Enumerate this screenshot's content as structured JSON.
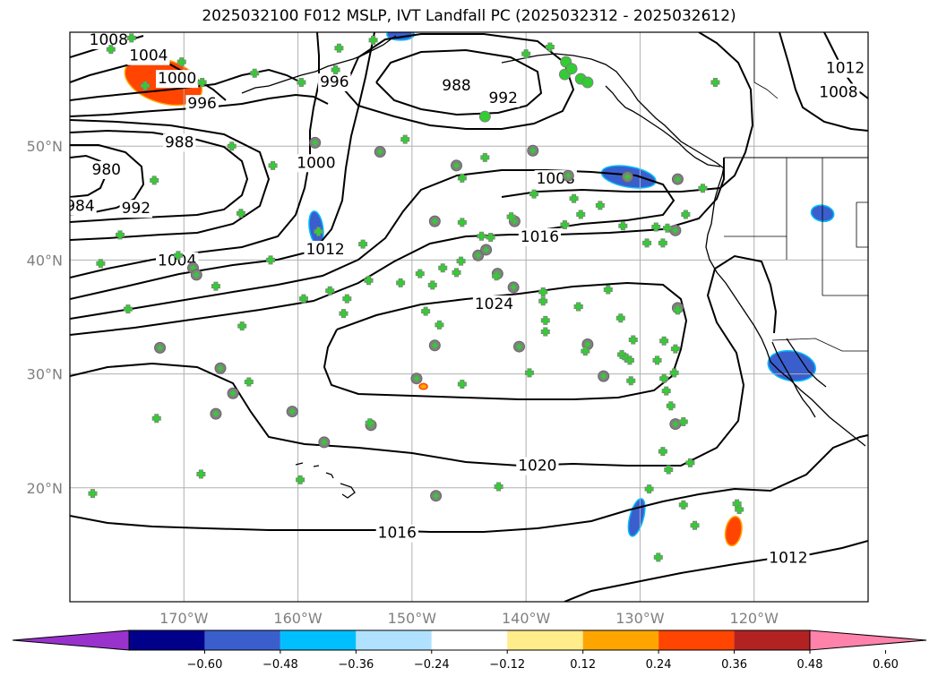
{
  "title": "2025032100 F012 MSLP, IVT Landfall PC (2025032312 - 2025032612)",
  "map": {
    "lon_range": [
      -180,
      -110
    ],
    "lat_range": [
      10,
      60
    ],
    "lat_ticks": [
      {
        "value": 50,
        "label": "50°N"
      },
      {
        "value": 40,
        "label": "40°N"
      },
      {
        "value": 30,
        "label": "30°N"
      },
      {
        "value": 20,
        "label": "20°N"
      }
    ],
    "lon_ticks": [
      {
        "value": -170,
        "label": "170°W"
      },
      {
        "value": -160,
        "label": "160°W"
      },
      {
        "value": -150,
        "label": "150°W"
      },
      {
        "value": -140,
        "label": "140°W"
      },
      {
        "value": -130,
        "label": "130°W"
      },
      {
        "value": -120,
        "label": "120°W"
      }
    ],
    "grid": true
  },
  "contour_labels": [
    {
      "text": "1008",
      "lon": -176.6,
      "lat": 59.3
    },
    {
      "text": "1004",
      "lon": -173.1,
      "lat": 57.9
    },
    {
      "text": "1000",
      "lon": -170.6,
      "lat": 55.9
    },
    {
      "text": "996",
      "lon": -168.4,
      "lat": 53.7
    },
    {
      "text": "988",
      "lon": -170.4,
      "lat": 50.3
    },
    {
      "text": "980",
      "lon": -176.8,
      "lat": 47.9
    },
    {
      "text": "984",
      "lon": -179.1,
      "lat": 44.7
    },
    {
      "text": "992",
      "lon": -174.2,
      "lat": 44.5
    },
    {
      "text": "1004",
      "lon": -170.6,
      "lat": 39.9
    },
    {
      "text": "996",
      "lon": -156.8,
      "lat": 55.6
    },
    {
      "text": "1000",
      "lon": -158.4,
      "lat": 48.5
    },
    {
      "text": "988",
      "lon": -146.1,
      "lat": 55.3
    },
    {
      "text": "992",
      "lon": -142.0,
      "lat": 54.2
    },
    {
      "text": "1012",
      "lon": -157.6,
      "lat": 40.9
    },
    {
      "text": "1008",
      "lon": -137.4,
      "lat": 47.1
    },
    {
      "text": "1016",
      "lon": -138.8,
      "lat": 42.0
    },
    {
      "text": "1024",
      "lon": -142.8,
      "lat": 36.1
    },
    {
      "text": "1020",
      "lon": -139.0,
      "lat": 21.9
    },
    {
      "text": "1016",
      "lon": -151.3,
      "lat": 16.0
    },
    {
      "text": "1012",
      "lon": -117.0,
      "lat": 13.8
    },
    {
      "text": "1012",
      "lon": -112.0,
      "lat": 56.8
    },
    {
      "text": "1008",
      "lon": -112.6,
      "lat": 54.7
    }
  ],
  "colorbar": {
    "colors": [
      "#9932cc",
      "#00008b",
      "#3a5fcd",
      "#00bfff",
      "#b0e2ff",
      "#ffffff",
      "#ffec8b",
      "#ffa500",
      "#ff4500",
      "#b22222",
      "#ff82ab"
    ],
    "ticks": [
      "−0.60",
      "−0.48",
      "−0.36",
      "−0.24",
      "−0.12",
      "0.12",
      "0.24",
      "0.36",
      "0.48",
      "0.60"
    ]
  },
  "ivt_patches": [
    {
      "lon": -171.8,
      "lat": 55.7,
      "rlon": 3.5,
      "rlat": 1.9,
      "rot": 18,
      "fill": "#ff4500",
      "stroke": "#ffa500"
    },
    {
      "lon": -131.0,
      "lat": 47.3,
      "rlon": 2.4,
      "rlat": 0.9,
      "rot": 10,
      "fill": "#3a5fcd",
      "stroke": "#00bfff"
    },
    {
      "lon": -158.4,
      "lat": 42.8,
      "rlon": 0.6,
      "rlat": 1.5,
      "rot": -8,
      "fill": "#3a5fcd",
      "stroke": "#00bfff"
    },
    {
      "lon": -116.7,
      "lat": 30.7,
      "rlon": 2.1,
      "rlat": 1.3,
      "rot": 10,
      "fill": "#3a5fcd",
      "stroke": "#00bfff"
    },
    {
      "lon": -114.0,
      "lat": 44.1,
      "rlon": 1.0,
      "rlat": 0.7,
      "rot": 10,
      "fill": "#3a5fcd",
      "stroke": "#00bfff"
    },
    {
      "lon": -130.3,
      "lat": 17.4,
      "rlon": 0.6,
      "rlat": 1.7,
      "rot": 15,
      "fill": "#3a5fcd",
      "stroke": "#00bfff"
    },
    {
      "lon": -121.8,
      "lat": 16.2,
      "rlon": 0.7,
      "rlat": 1.3,
      "rot": 10,
      "fill": "#ff4500",
      "stroke": "#ffa500"
    },
    {
      "lon": -151.0,
      "lat": 59.8,
      "rlon": 1.2,
      "rlat": 0.5,
      "rot": 0,
      "fill": "#3a5fcd",
      "stroke": "#00bfff"
    },
    {
      "lon": -149.0,
      "lat": 28.9,
      "rlon": 0.35,
      "rlat": 0.25,
      "rot": 0,
      "fill": "#ffa500",
      "stroke": "#ff4500"
    }
  ],
  "markers": {
    "plus": [
      [
        -176.4,
        58.5
      ],
      [
        -174.6,
        59.5
      ],
      [
        -173.4,
        55.3
      ],
      [
        -172.6,
        47.0
      ],
      [
        -170.2,
        57.4
      ],
      [
        -168.4,
        55.6
      ],
      [
        -165.8,
        50.0
      ],
      [
        -165.0,
        44.1
      ],
      [
        -163.8,
        56.4
      ],
      [
        -162.2,
        48.3
      ],
      [
        -159.7,
        55.6
      ],
      [
        -156.7,
        56.7
      ],
      [
        -156.4,
        58.6
      ],
      [
        -153.4,
        59.3
      ],
      [
        -150.6,
        50.6
      ],
      [
        -149.3,
        38.8
      ],
      [
        -148.8,
        35.5
      ],
      [
        -145.6,
        47.2
      ],
      [
        -143.6,
        49.0
      ],
      [
        -140.0,
        58.1
      ],
      [
        -137.9,
        58.7
      ],
      [
        -135.8,
        45.4
      ],
      [
        -133.5,
        44.8
      ],
      [
        -131.5,
        43.0
      ],
      [
        -129.4,
        41.5
      ],
      [
        -128.0,
        41.5
      ],
      [
        -127.6,
        42.8
      ],
      [
        -126.0,
        44.0
      ],
      [
        -124.5,
        46.3
      ],
      [
        -123.4,
        55.6
      ],
      [
        -175.6,
        42.2
      ],
      [
        -177.3,
        39.7
      ],
      [
        -174.9,
        35.7
      ],
      [
        -170.5,
        40.4
      ],
      [
        -167.2,
        37.7
      ],
      [
        -164.9,
        34.2
      ],
      [
        -162.4,
        40.0
      ],
      [
        -159.5,
        36.6
      ],
      [
        -158.2,
        42.5
      ],
      [
        -157.2,
        37.3
      ],
      [
        -156.0,
        35.3
      ],
      [
        -155.7,
        36.6
      ],
      [
        -154.3,
        41.4
      ],
      [
        -153.8,
        38.2
      ],
      [
        -151.0,
        38.0
      ],
      [
        -148.2,
        37.8
      ],
      [
        -147.3,
        39.3
      ],
      [
        -146.1,
        38.9
      ],
      [
        -145.7,
        39.9
      ],
      [
        -145.6,
        43.3
      ],
      [
        -143.9,
        42.1
      ],
      [
        -143.1,
        42.0
      ],
      [
        -142.6,
        38.6
      ],
      [
        -141.3,
        43.8
      ],
      [
        -139.3,
        45.8
      ],
      [
        -138.5,
        37.2
      ],
      [
        -136.6,
        43.1
      ],
      [
        -135.2,
        44.0
      ],
      [
        -132.8,
        37.4
      ],
      [
        -131.7,
        34.9
      ],
      [
        -130.6,
        33.0
      ],
      [
        -128.6,
        42.9
      ],
      [
        -126.7,
        35.6
      ],
      [
        -126.9,
        32.2
      ],
      [
        -127.9,
        32.9
      ],
      [
        -128.5,
        31.2
      ],
      [
        -127.0,
        30.1
      ],
      [
        -127.9,
        29.6
      ],
      [
        -126.2,
        25.8
      ],
      [
        -127.3,
        27.2
      ],
      [
        -128.0,
        23.2
      ],
      [
        -125.6,
        22.2
      ],
      [
        -127.5,
        21.6
      ],
      [
        -129.2,
        19.9
      ],
      [
        -126.2,
        18.5
      ],
      [
        -125.2,
        16.7
      ],
      [
        -121.5,
        18.6
      ],
      [
        -121.3,
        18.1
      ],
      [
        -128.4,
        13.9
      ],
      [
        -142.4,
        20.1
      ],
      [
        -139.7,
        30.1
      ],
      [
        -138.3,
        33.7
      ],
      [
        -138.3,
        34.7
      ],
      [
        -138.5,
        36.4
      ],
      [
        -135.4,
        35.9
      ],
      [
        -134.8,
        32.0
      ],
      [
        -135.4,
        35.9
      ],
      [
        -131.6,
        31.7
      ],
      [
        -131.2,
        31.4
      ],
      [
        -130.9,
        31.2
      ],
      [
        -130.8,
        29.4
      ],
      [
        -127.7,
        28.5
      ],
      [
        -172.4,
        26.1
      ],
      [
        -168.5,
        21.2
      ],
      [
        -178.0,
        19.5
      ],
      [
        -164.3,
        29.3
      ],
      [
        -159.8,
        20.7
      ],
      [
        -153.7,
        25.7
      ],
      [
        -147.6,
        34.3
      ],
      [
        -145.6,
        29.1
      ]
    ],
    "circle": [
      [
        -172.1,
        32.3
      ],
      [
        -169.2,
        39.3
      ],
      [
        -168.9,
        38.7
      ],
      [
        -166.8,
        30.5
      ],
      [
        -165.7,
        28.3
      ],
      [
        -167.2,
        26.5
      ],
      [
        -160.5,
        26.7
      ],
      [
        -157.7,
        24.0
      ],
      [
        -158.5,
        50.3
      ],
      [
        -152.8,
        49.5
      ],
      [
        -148.0,
        43.4
      ],
      [
        -146.1,
        48.3
      ],
      [
        -144.2,
        40.4
      ],
      [
        -143.5,
        40.9
      ],
      [
        -142.5,
        38.8
      ],
      [
        -141.1,
        37.6
      ],
      [
        -140.6,
        32.4
      ],
      [
        -141.0,
        43.4
      ],
      [
        -139.4,
        49.6
      ],
      [
        -136.3,
        47.4
      ],
      [
        -134.6,
        32.6
      ],
      [
        -133.2,
        29.8
      ],
      [
        -131.1,
        47.3
      ],
      [
        -126.7,
        35.8
      ],
      [
        -126.9,
        25.6
      ],
      [
        -126.9,
        42.6
      ],
      [
        -126.7,
        47.1
      ],
      [
        -149.6,
        29.6
      ],
      [
        -147.9,
        19.3
      ],
      [
        -153.6,
        25.5
      ],
      [
        -148.0,
        32.5
      ]
    ],
    "green_circle": [
      [
        -143.6,
        52.6
      ],
      [
        -136.5,
        57.4
      ],
      [
        -136.6,
        56.3
      ],
      [
        -136.0,
        56.8
      ],
      [
        -135.2,
        55.9
      ],
      [
        -134.6,
        55.6
      ]
    ]
  }
}
